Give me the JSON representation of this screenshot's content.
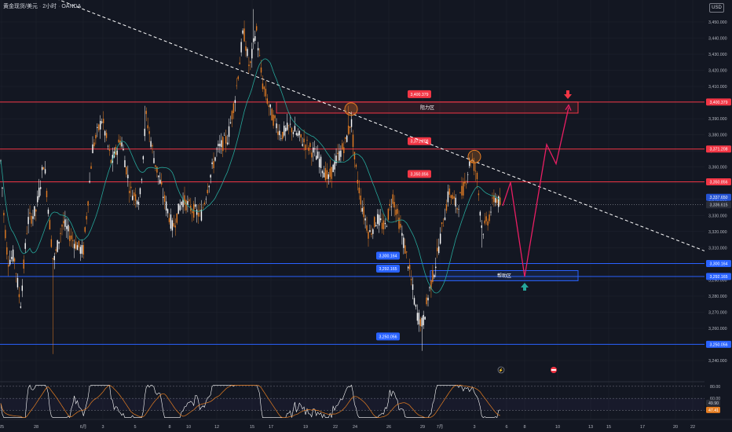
{
  "header": {
    "symbol": "黄金现货/美元",
    "sep1": "·",
    "interval": "2小时",
    "sep2": "·",
    "source": "OANDA"
  },
  "currency_button": "USD",
  "colors": {
    "background": "#131722",
    "grid": "#1e222d",
    "resistance": "#f23645",
    "support": "#2962ff",
    "up_candle": "#ffffff",
    "down_candle": "#e67e22",
    "ma": "#26a69a",
    "rsi": "#ffffff",
    "rsi_ma": "#e67e22",
    "projection": "#e91e63",
    "trendline": "#ffffff",
    "last_price": "#9598a1"
  },
  "chart_data": {
    "type": "candlestick",
    "title": "",
    "ylim": [
      3232,
      3462
    ],
    "y_ticks": [
      3240,
      3250,
      3260,
      3270,
      3280,
      3290,
      3300,
      3310,
      3320,
      3330,
      3340,
      3350,
      3360,
      3370,
      3380,
      3390,
      3400,
      3410,
      3420,
      3430,
      3440,
      3450
    ],
    "x_ticks": [
      "25",
      "28",
      "6月",
      "3",
      "5",
      "8",
      "10",
      "12",
      "15",
      "17",
      "19",
      "22",
      "24",
      "26",
      "29",
      "7月",
      "3",
      "6",
      "8",
      "10",
      "13",
      "15",
      "17",
      "20",
      "22"
    ],
    "levels": [
      {
        "price": 3400.379,
        "label": "3,400.379",
        "kind": "resistance"
      },
      {
        "price": 3371.208,
        "label": "3,371.208",
        "kind": "resistance"
      },
      {
        "price": 3350.856,
        "label": "3,350.856",
        "kind": "resistance"
      },
      {
        "price": 3300.164,
        "label": "3,300.164",
        "kind": "support"
      },
      {
        "price": 3292.165,
        "label": "3,292.165",
        "kind": "support"
      },
      {
        "price": 3250.056,
        "label": "3,250.056",
        "kind": "support"
      }
    ],
    "zones": [
      {
        "label": "阻力区",
        "top": 3400.379,
        "bottom": 3393.5,
        "kind": "resistance"
      },
      {
        "label": "帮助区",
        "top": 3295.8,
        "bottom": 3289.5,
        "kind": "support"
      }
    ],
    "last_price": {
      "value": 3336.615,
      "label": "3,336.615"
    },
    "price_marker": "3,337.650",
    "trendline": {
      "from": [
        "start",
        3478
      ],
      "to": [
        "22",
        3308
      ]
    },
    "anchors": [
      {
        "x": "start",
        "price": 3372
      },
      {
        "x": 5,
        "price": 3330
      },
      {
        "x": 10,
        "price": 3302
      },
      {
        "x": 18,
        "price": 3305
      },
      {
        "x": 26,
        "price": 3274
      },
      {
        "x": 35,
        "price": 3326
      },
      {
        "x": 46,
        "price": 3333
      },
      {
        "x": 56,
        "price": 3364
      },
      {
        "x": 68,
        "price": 3300
      },
      {
        "x": 80,
        "price": 3326
      },
      {
        "x": 92,
        "price": 3315
      },
      {
        "x": 106,
        "price": 3307
      },
      {
        "x": 118,
        "price": 3372
      },
      {
        "x": 130,
        "price": 3390
      },
      {
        "x": 142,
        "price": 3362
      },
      {
        "x": 154,
        "price": 3378
      },
      {
        "x": 166,
        "price": 3345
      },
      {
        "x": 178,
        "price": 3340
      },
      {
        "x": 186,
        "price": 3392
      },
      {
        "x": 196,
        "price": 3366
      },
      {
        "x": 208,
        "price": 3342
      },
      {
        "x": 220,
        "price": 3322
      },
      {
        "x": 232,
        "price": 3340
      },
      {
        "x": 244,
        "price": 3334
      },
      {
        "x": 256,
        "price": 3330
      },
      {
        "x": 266,
        "price": 3351
      },
      {
        "x": 276,
        "price": 3370
      },
      {
        "x": 290,
        "price": 3378
      },
      {
        "x": 300,
        "price": 3405
      },
      {
        "x": 310,
        "price": 3445
      },
      {
        "x": 318,
        "price": 3420
      },
      {
        "x": 326,
        "price": 3447
      },
      {
        "x": 334,
        "price": 3412
      },
      {
        "x": 346,
        "price": 3392
      },
      {
        "x": 358,
        "price": 3380
      },
      {
        "x": 370,
        "price": 3385
      },
      {
        "x": 382,
        "price": 3378
      },
      {
        "x": 394,
        "price": 3372
      },
      {
        "x": 406,
        "price": 3365
      },
      {
        "x": 418,
        "price": 3352
      },
      {
        "x": 430,
        "price": 3366
      },
      {
        "x": 440,
        "price": 3375
      },
      {
        "x": 447,
        "price": 3390
      },
      {
        "x": 452,
        "price": 3362
      },
      {
        "x": 460,
        "price": 3338
      },
      {
        "x": 470,
        "price": 3318
      },
      {
        "x": 480,
        "price": 3328
      },
      {
        "x": 490,
        "price": 3322
      },
      {
        "x": 500,
        "price": 3342
      },
      {
        "x": 510,
        "price": 3322
      },
      {
        "x": 520,
        "price": 3300
      },
      {
        "x": 530,
        "price": 3270
      },
      {
        "x": 538,
        "price": 3262
      },
      {
        "x": 546,
        "price": 3282
      },
      {
        "x": 554,
        "price": 3298
      },
      {
        "x": 562,
        "price": 3320
      },
      {
        "x": 572,
        "price": 3345
      },
      {
        "x": 582,
        "price": 3335
      },
      {
        "x": 592,
        "price": 3350
      },
      {
        "x": 600,
        "price": 3366
      },
      {
        "x": 607,
        "price": 3356
      },
      {
        "x": 614,
        "price": 3320
      },
      {
        "x": 622,
        "price": 3328
      },
      {
        "x": 630,
        "price": 3342
      },
      {
        "x": 638,
        "price": 3336
      }
    ],
    "projection": [
      {
        "x": 640,
        "price": 3336
      },
      {
        "x": 650,
        "price": 3350.5
      },
      {
        "x": 668,
        "price": 3292
      },
      {
        "x": 696,
        "price": 3374
      },
      {
        "x": 708,
        "price": 3362
      },
      {
        "x": 724,
        "price": 3397
      }
    ],
    "moving_average": true,
    "rsi": {
      "levels": [
        80,
        60,
        40
      ],
      "ma_value": "49.90",
      "value": "47.41",
      "ylim": [
        25,
        85
      ]
    }
  }
}
